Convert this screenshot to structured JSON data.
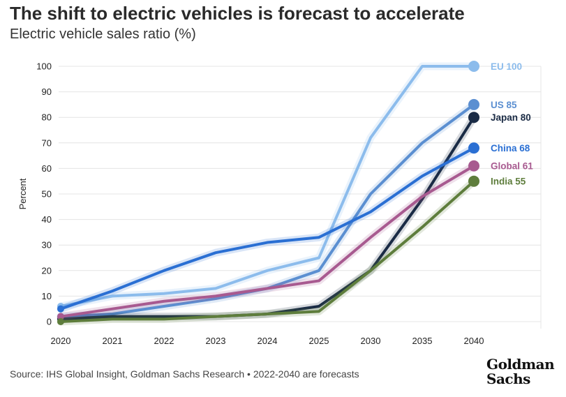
{
  "header": {
    "title": "The shift to electric vehicles is forecast to accelerate",
    "subtitle": "Electric vehicle sales ratio (%)"
  },
  "footer": {
    "source": "Source: IHS Global Insight, Goldman Sachs Research • 2022-2040 are forecasts",
    "logo_line1": "Goldman",
    "logo_line2": "Sachs"
  },
  "chart_data": {
    "type": "line",
    "title": "The shift to electric vehicles is forecast to accelerate",
    "subtitle": "Electric vehicle sales ratio (%)",
    "xlabel": "",
    "ylabel": "Percent",
    "categories": [
      "2020",
      "2021",
      "2022",
      "2023",
      "2024",
      "2025",
      "2030",
      "2035",
      "2040"
    ],
    "yticks": [
      0,
      10,
      20,
      30,
      40,
      50,
      60,
      70,
      80,
      90,
      100
    ],
    "ylim": [
      0,
      100
    ],
    "grid": true,
    "legend": "end-of-line labels",
    "series": [
      {
        "name": "EU",
        "label": "EU 100",
        "color": "#8cbcec",
        "values": [
          6,
          10,
          11,
          13,
          20,
          25,
          72,
          100,
          100
        ]
      },
      {
        "name": "US",
        "label": "US 85",
        "color": "#5b8fd1",
        "values": [
          2,
          3,
          6,
          9,
          13,
          20,
          50,
          70,
          85
        ]
      },
      {
        "name": "Japan",
        "label": "Japan 80",
        "color": "#1a2b45",
        "values": [
          1,
          2,
          2,
          2,
          3,
          6,
          20,
          48,
          80
        ]
      },
      {
        "name": "China",
        "label": "China 68",
        "color": "#2a6fd3",
        "values": [
          5,
          12,
          20,
          27,
          31,
          33,
          43,
          57,
          68
        ]
      },
      {
        "name": "Global",
        "label": "Global 61",
        "color": "#a85a90",
        "values": [
          2,
          5,
          8,
          10,
          13,
          16,
          33,
          49,
          61
        ]
      },
      {
        "name": "India",
        "label": "India 55",
        "color": "#5e7d3c",
        "values": [
          0,
          1,
          1,
          2,
          3,
          4,
          20,
          37,
          55
        ]
      }
    ]
  }
}
